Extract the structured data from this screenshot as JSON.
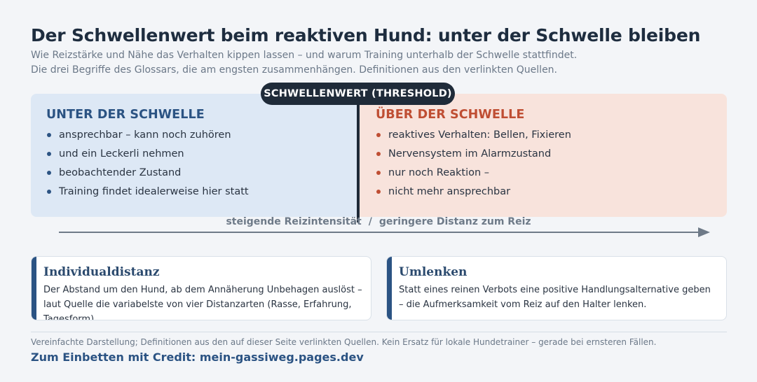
{
  "header": {
    "title": "Der Schwellenwert beim reaktiven Hund: unter der Schwelle bleiben",
    "subtitle_1": "Wie Reizstärke und Nähe das Verhalten kippen lassen – und warum Training unterhalb der Schwelle stattfindet.",
    "subtitle_2": "Die drei Begriffe des Glossars, die am engsten zusammenhängen. Definitionen aus den verlinkten Quellen."
  },
  "diagram": {
    "threshold_label": "SCHWELLENWERT (THRESHOLD)",
    "left": {
      "heading": "UNTER DER SCHWELLE",
      "items": [
        "ansprechbar – kann noch zuhören",
        "und ein Leckerli nehmen",
        "beobachtender Zustand",
        "Training findet idealerweise hier statt"
      ]
    },
    "right": {
      "heading": "ÜBER DER SCHWELLE",
      "items": [
        "reaktives Verhalten: Bellen, Fixieren",
        "Nervensystem im Alarmzustand",
        "nur noch Reaktion –",
        "nicht mehr ansprechbar"
      ]
    },
    "axis": {
      "label_left": "steigende Reizintensität",
      "separator": "/",
      "label_right": "geringere Distanz zum Reiz"
    },
    "colors": {
      "below": "#2b5383",
      "above": "#bf4e33",
      "below_bg": "#dde8f5",
      "above_bg": "#f8e3dc",
      "threshold": "#1f2b39"
    }
  },
  "cards": [
    {
      "title": "Individualdistanz",
      "text": "Der Abstand um den Hund, ab dem Annäherung Unbehagen auslöst – laut Quelle die variabelste von vier Distanzarten (Rasse, Erfahrung, Tagesform)."
    },
    {
      "title": "Umlenken",
      "text": "Statt eines reinen Verbots eine positive Handlungsalternative geben – die Aufmerksamkeit vom Reiz auf den Halter lenken."
    }
  ],
  "footer": {
    "note": "Vereinfachte Darstellung; Definitionen aus den auf dieser Seite verlinkten Quellen. Kein Ersatz für lokale Hundetrainer – gerade bei ernsteren Fällen.",
    "credit": "Zum Einbetten mit Credit: mein-gassiweg.pages.dev"
  }
}
